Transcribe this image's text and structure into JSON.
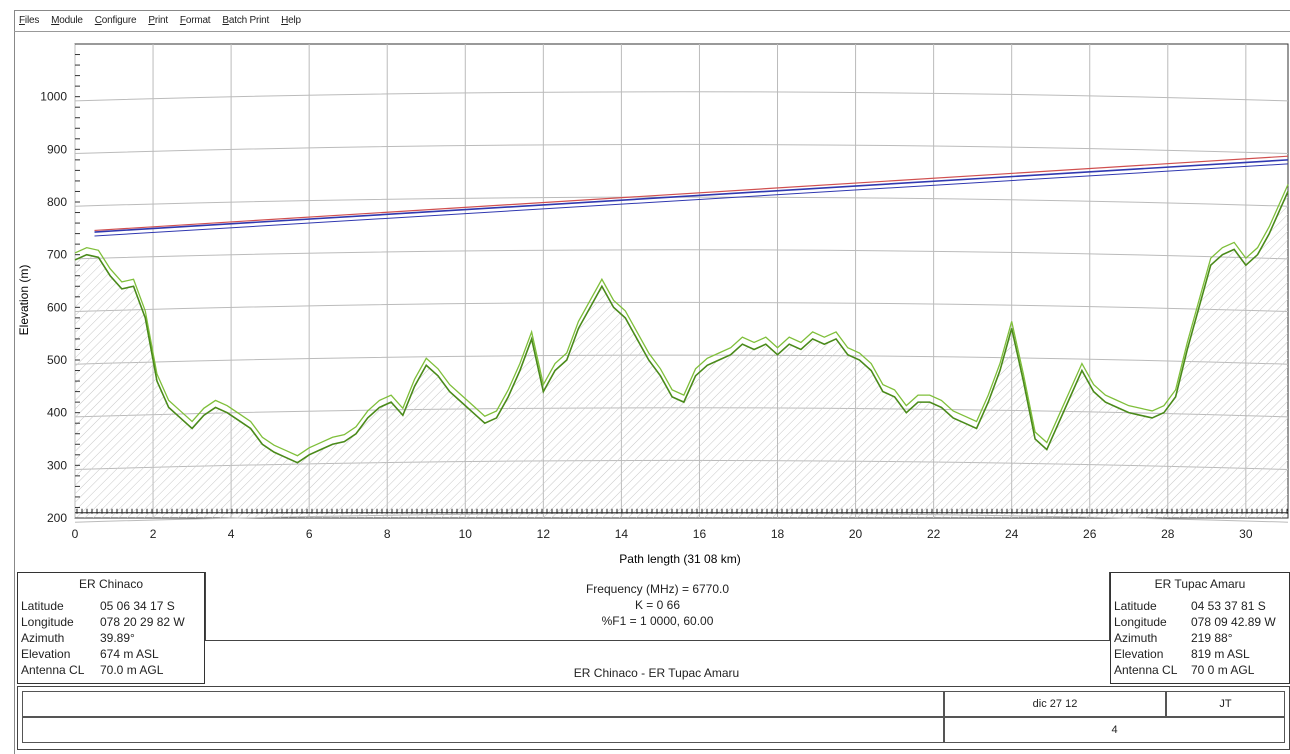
{
  "menu": [
    "Files",
    "Module",
    "Configure",
    "Print",
    "Format",
    "Batch Print",
    "Help"
  ],
  "chart_data": {
    "type": "line",
    "title": "",
    "xlabel": "Path length (31 08 km)",
    "ylabel": "Elevation (m)",
    "xlim": [
      0,
      31.08
    ],
    "ylim": [
      200,
      1100
    ],
    "xticks": [
      0,
      2,
      4,
      6,
      8,
      10,
      12,
      14,
      16,
      18,
      20,
      22,
      24,
      26,
      28,
      30
    ],
    "yticks": [
      200,
      300,
      400,
      500,
      600,
      700,
      800,
      900,
      1000
    ],
    "grid": true,
    "colors": {
      "terrain": "#4a8a1a",
      "terrain_light": "#7fbf3a",
      "los": "#3038b0",
      "fresnel": "#d05050",
      "grid": "#bbbbbb"
    },
    "series": [
      {
        "x": [
          0,
          0.3,
          0.6,
          0.9,
          1.2,
          1.5,
          1.8,
          2.1,
          2.4,
          2.7,
          3.0,
          3.3,
          3.6,
          3.9,
          4.2,
          4.5,
          4.8,
          5.1,
          5.4,
          5.7,
          6.0,
          6.3,
          6.6,
          6.9,
          7.2,
          7.5,
          7.8,
          8.1,
          8.4,
          8.7,
          9.0,
          9.3,
          9.6,
          9.9,
          10.2,
          10.5,
          10.8,
          11.1,
          11.4,
          11.7,
          12.0,
          12.3,
          12.6,
          12.9,
          13.2,
          13.5,
          13.8,
          14.1,
          14.4,
          14.7,
          15.0,
          15.3,
          15.6,
          15.9,
          16.2,
          16.5,
          16.8,
          17.1,
          17.4,
          17.7,
          18.0,
          18.3,
          18.6,
          18.9,
          19.2,
          19.5,
          19.8,
          20.1,
          20.4,
          20.7,
          21.0,
          21.3,
          21.6,
          21.9,
          22.2,
          22.5,
          22.8,
          23.1,
          23.4,
          23.7,
          24.0,
          24.3,
          24.6,
          24.9,
          25.2,
          25.5,
          25.8,
          26.1,
          26.4,
          26.7,
          27.0,
          27.3,
          27.6,
          27.9,
          28.2,
          28.5,
          28.8,
          29.1,
          29.4,
          29.7,
          30.0,
          30.3,
          30.6,
          31.08
        ],
        "values": [
          690,
          700,
          695,
          660,
          635,
          640,
          580,
          460,
          410,
          390,
          370,
          395,
          410,
          400,
          385,
          370,
          340,
          325,
          315,
          305,
          320,
          330,
          340,
          345,
          360,
          390,
          410,
          420,
          395,
          450,
          490,
          470,
          440,
          420,
          400,
          380,
          390,
          430,
          480,
          540,
          440,
          480,
          500,
          560,
          600,
          640,
          600,
          580,
          540,
          500,
          470,
          430,
          420,
          470,
          490,
          500,
          510,
          530,
          520,
          530,
          510,
          530,
          520,
          540,
          530,
          540,
          510,
          500,
          480,
          440,
          430,
          400,
          420,
          420,
          410,
          390,
          380,
          370,
          420,
          480,
          560,
          460,
          350,
          330,
          380,
          430,
          480,
          440,
          420,
          410,
          400,
          395,
          390,
          400,
          430,
          520,
          600,
          680,
          700,
          710,
          680,
          700,
          740,
          820
        ]
      },
      {
        "x": [
          0.5,
          31.08
        ],
        "values": [
          743,
          880
        ]
      },
      {
        "x": [
          0.5,
          31.08
        ],
        "values": [
          746,
          887
        ]
      }
    ]
  },
  "left_site": {
    "name": "ER Chinaco",
    "rows": [
      {
        "label": "Latitude",
        "value": "05 06 34 17 S"
      },
      {
        "label": "Longitude",
        "value": "078 20 29 82 W"
      },
      {
        "label": "Azimuth",
        "value": "39.89°"
      },
      {
        "label": "Elevation",
        "value": "674 m ASL"
      },
      {
        "label": "Antenna CL",
        "value": "70.0 m AGL"
      }
    ]
  },
  "right_site": {
    "name": "ER Tupac Amaru",
    "rows": [
      {
        "label": "Latitude",
        "value": "04 53 37 81 S"
      },
      {
        "label": "Longitude",
        "value": "078 09 42.89 W"
      },
      {
        "label": "Azimuth",
        "value": "219 88°"
      },
      {
        "label": "Elevation",
        "value": "819 m ASL"
      },
      {
        "label": "Antenna CL",
        "value": "70 0 m AGL"
      }
    ]
  },
  "center": {
    "line1": "Frequency (MHz) = 6770.0",
    "line2": "K = 0 66",
    "line3": "%F1 = 1 0000, 60.00",
    "link": "ER Chinaco - ER Tupac Amaru"
  },
  "footer": {
    "date": "dic 27 12",
    "initials": "JT",
    "page": "4"
  }
}
